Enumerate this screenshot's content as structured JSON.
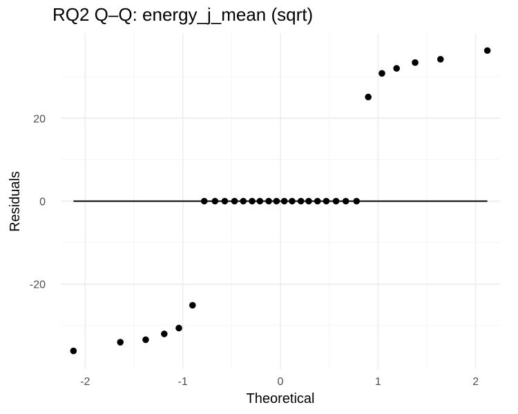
{
  "chart_data": {
    "type": "scatter",
    "title": "RQ2 Q–Q: energy_j_mean (sqrt)",
    "xlabel": "Theoretical",
    "ylabel": "Residuals",
    "xlim": [
      -2.25,
      2.25
    ],
    "ylim": [
      -40.5,
      40.5
    ],
    "x_ticks": [
      -2,
      -1,
      0,
      1,
      2
    ],
    "x_tick_labels": [
      "-2",
      "-1",
      "0",
      "1",
      "2"
    ],
    "y_ticks": [
      -20,
      0,
      20
    ],
    "y_tick_labels": [
      "-20",
      "0",
      "20"
    ],
    "grid": true,
    "reference_line": {
      "x": [
        -2.12,
        2.12
      ],
      "y": [
        0,
        0
      ]
    },
    "points": [
      {
        "x": -2.12,
        "y": -36.1
      },
      {
        "x": -1.64,
        "y": -34.0
      },
      {
        "x": -1.38,
        "y": -33.4
      },
      {
        "x": -1.19,
        "y": -32.0
      },
      {
        "x": -1.04,
        "y": -30.6
      },
      {
        "x": -0.9,
        "y": -25.1
      },
      {
        "x": -0.78,
        "y": 0
      },
      {
        "x": -0.67,
        "y": 0
      },
      {
        "x": -0.57,
        "y": 0
      },
      {
        "x": -0.47,
        "y": 0
      },
      {
        "x": -0.38,
        "y": 0
      },
      {
        "x": -0.29,
        "y": 0
      },
      {
        "x": -0.21,
        "y": 0
      },
      {
        "x": -0.12,
        "y": 0
      },
      {
        "x": -0.04,
        "y": 0
      },
      {
        "x": 0.04,
        "y": 0
      },
      {
        "x": 0.12,
        "y": 0
      },
      {
        "x": 0.21,
        "y": 0
      },
      {
        "x": 0.29,
        "y": 0
      },
      {
        "x": 0.38,
        "y": 0
      },
      {
        "x": 0.47,
        "y": 0
      },
      {
        "x": 0.57,
        "y": 0
      },
      {
        "x": 0.67,
        "y": 0
      },
      {
        "x": 0.78,
        "y": 0
      },
      {
        "x": 0.9,
        "y": 25.1
      },
      {
        "x": 1.04,
        "y": 30.8
      },
      {
        "x": 1.19,
        "y": 32.0
      },
      {
        "x": 1.38,
        "y": 33.4
      },
      {
        "x": 1.64,
        "y": 34.2
      },
      {
        "x": 2.12,
        "y": 36.3
      }
    ]
  }
}
